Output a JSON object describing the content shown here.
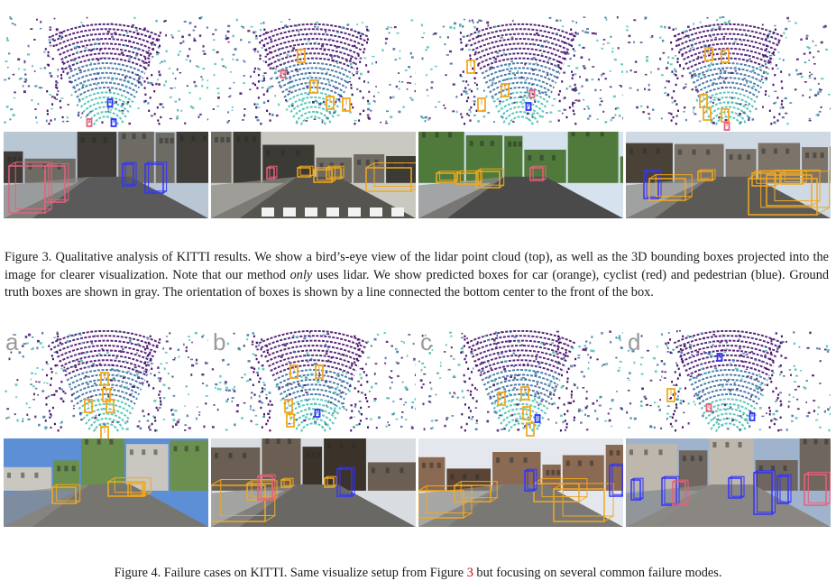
{
  "figure3": {
    "caption_a": "Figure 3. Qualitative analysis of KITTI results. We show a bird’s-eye view of the lidar point cloud (top), as well as the 3D bounding boxes projected into the image for clearer visualization. Note that our method ",
    "caption_em": "only",
    "caption_b": " uses lidar. We show predicted boxes for car (orange), cyclist (red) and pedestrian (blue). Ground truth boxes are shown in gray. The orientation of boxes is shown by a line connected the bottom center to the front of the box."
  },
  "figure4": {
    "caption_a": "Figure 4. Failure cases on KITTI. Same visualize setup from Figure ",
    "caption_ref": "3",
    "caption_b": " but focusing on several common failure modes.",
    "panel_labels": [
      "a",
      "b",
      "c",
      "d"
    ]
  },
  "colors": {
    "car": "#f2a91f",
    "cyclist": "#e8607a",
    "pedestrian": "#3333ff",
    "points_dark": "#46106b",
    "points_mid": "#3b6fa0",
    "points_light": "#49c1b2",
    "fig_ref": "#cc0000"
  }
}
